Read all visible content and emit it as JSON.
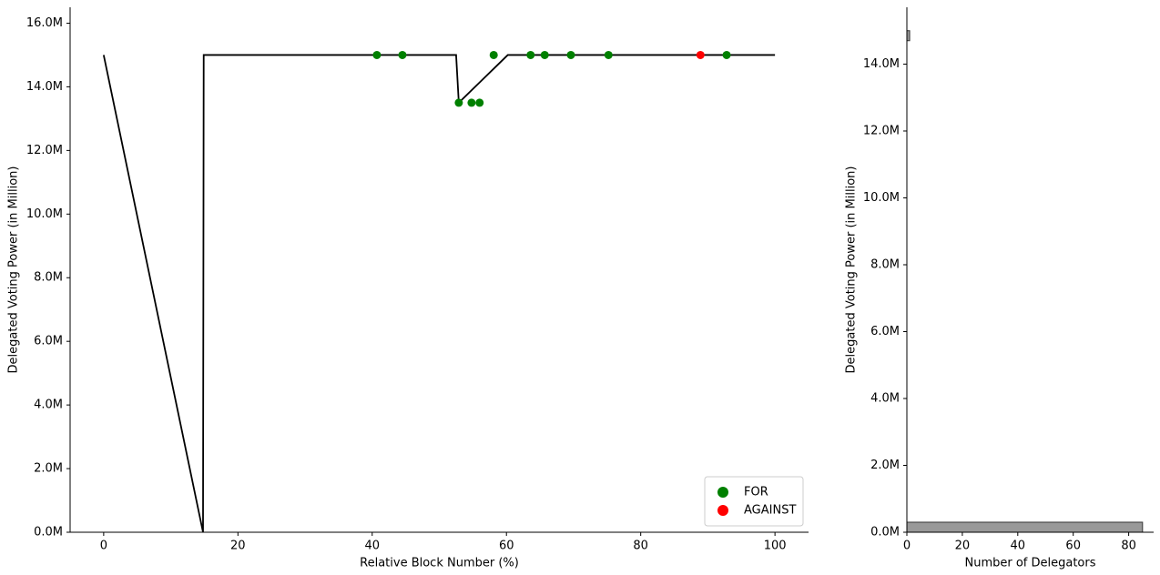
{
  "chart_data": [
    {
      "type": "line",
      "xlabel": "Relative Block Number (%)",
      "ylabel": "Delegated Voting Power (in Million)",
      "xlim": [
        -5,
        105
      ],
      "xticks": [
        0,
        20,
        40,
        60,
        80,
        100
      ],
      "ylim": [
        0,
        16.5
      ],
      "yticks": [
        {
          "value": 0,
          "label": "0.0M"
        },
        {
          "value": 2,
          "label": "2.0M"
        },
        {
          "value": 4,
          "label": "4.0M"
        },
        {
          "value": 6,
          "label": "6.0M"
        },
        {
          "value": 8,
          "label": "8.0M"
        },
        {
          "value": 10,
          "label": "10.0M"
        },
        {
          "value": 12,
          "label": "12.0M"
        },
        {
          "value": 14,
          "label": "14.0M"
        },
        {
          "value": 16,
          "label": "16.0M"
        }
      ],
      "legend": "lower right",
      "series": [
        {
          "type": "line",
          "color": "#000000",
          "x": [
            0,
            14.8,
            14.9,
            52.5,
            52.9,
            60.2,
            100
          ],
          "values": [
            15,
            0,
            15,
            15,
            13.5,
            15,
            15
          ]
        },
        {
          "type": "scatter",
          "name": "FOR",
          "color": "#008000",
          "x": [
            40.7,
            44.5,
            52.9,
            54.8,
            56.0,
            58.1,
            63.6,
            65.7,
            69.6,
            75.2,
            92.8
          ],
          "values": [
            15,
            15,
            13.5,
            13.5,
            13.5,
            15,
            15,
            15,
            15,
            15,
            15
          ]
        },
        {
          "type": "scatter",
          "name": "AGAINST",
          "color": "#ff0000",
          "x": [
            88.9
          ],
          "values": [
            15
          ]
        }
      ]
    },
    {
      "type": "histogram",
      "orientation": "horizontal",
      "xlabel": "Number of Delegators",
      "ylabel": "Delegated Voting Power (in Million)",
      "xlim": [
        0,
        89
      ],
      "xticks": [
        0,
        20,
        40,
        60,
        80
      ],
      "ylim": [
        0,
        15.7
      ],
      "yticks": [
        {
          "value": 0,
          "label": "0.0M"
        },
        {
          "value": 2,
          "label": "2.0M"
        },
        {
          "value": 4,
          "label": "4.0M"
        },
        {
          "value": 6,
          "label": "6.0M"
        },
        {
          "value": 8,
          "label": "8.0M"
        },
        {
          "value": 10,
          "label": "10.0M"
        },
        {
          "value": 12,
          "label": "12.0M"
        },
        {
          "value": 14,
          "label": "14.0M"
        }
      ],
      "color": "#999999",
      "bins": [
        0,
        0.3,
        0.6,
        0.9,
        1.2,
        1.5,
        1.8,
        2.1,
        2.4,
        2.7,
        3.0,
        3.3,
        3.6,
        3.9,
        4.2,
        4.5,
        4.8,
        5.1,
        5.4,
        5.7,
        6.0,
        6.3,
        6.6,
        6.9,
        7.2,
        7.5,
        7.8,
        8.1,
        8.4,
        8.7,
        9.0,
        9.3,
        9.6,
        9.9,
        10.2,
        10.5,
        10.8,
        11.1,
        11.4,
        11.7,
        12.0,
        12.3,
        12.6,
        12.9,
        13.2,
        13.5,
        13.8,
        14.1,
        14.4,
        14.7,
        15.0
      ],
      "counts": [
        85,
        0,
        0,
        0,
        0,
        0,
        0,
        0,
        0,
        0,
        0,
        0,
        0,
        0,
        0,
        0,
        0,
        0,
        0,
        0,
        0,
        0,
        0,
        0,
        0,
        0,
        0,
        0,
        0,
        0,
        0,
        0,
        0,
        0,
        0,
        0,
        0,
        0,
        0,
        0,
        0,
        0,
        0,
        0,
        0,
        0,
        0,
        0,
        0,
        1
      ]
    }
  ]
}
